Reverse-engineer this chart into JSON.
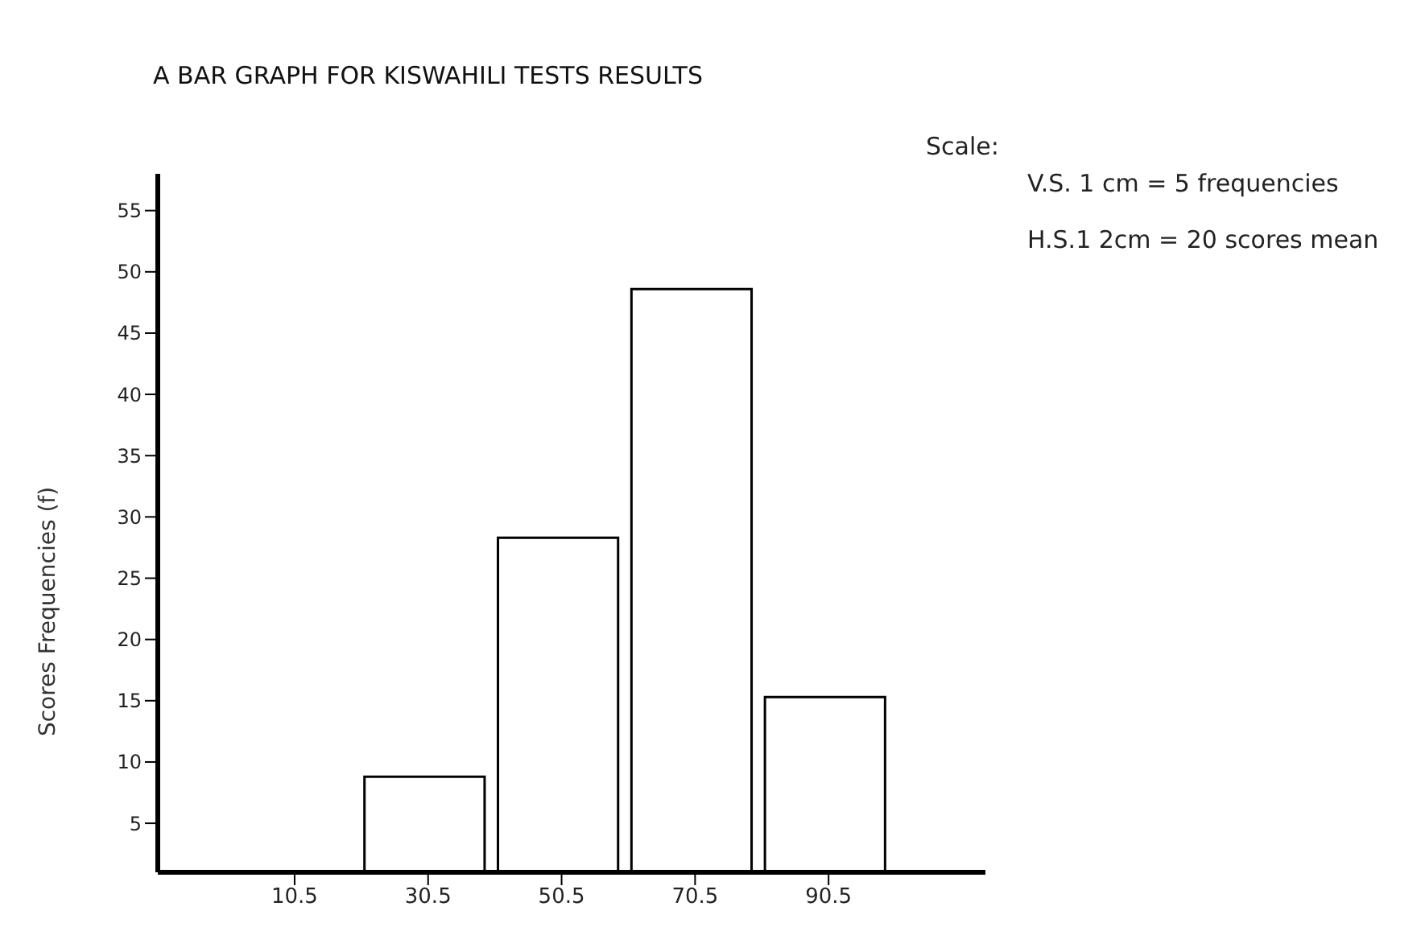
{
  "chart_data": {
    "type": "histogram",
    "title": "A BAR GRAPH FOR KISWAHILI TESTS RESULTS",
    "ylabel": "Scores Frequencies (f)",
    "annotations": [
      "Scale:",
      "V.S.  1 cm  =  5 frequencies",
      "H.S.1  2cm  =  20 scores mean"
    ],
    "bins": [
      20,
      40,
      60,
      80,
      100
    ],
    "values": [
      8.8,
      28.3,
      48.6,
      15.3
    ],
    "color": "#ffffff",
    "xlim": [
      -10,
      114
    ],
    "xticks": [
      10.5,
      30.5,
      50.5,
      70.5,
      90.5
    ],
    "ylim": [
      1,
      58
    ],
    "yticks": [
      5,
      10,
      15,
      20,
      25,
      30,
      35,
      40,
      45,
      50,
      55
    ]
  }
}
